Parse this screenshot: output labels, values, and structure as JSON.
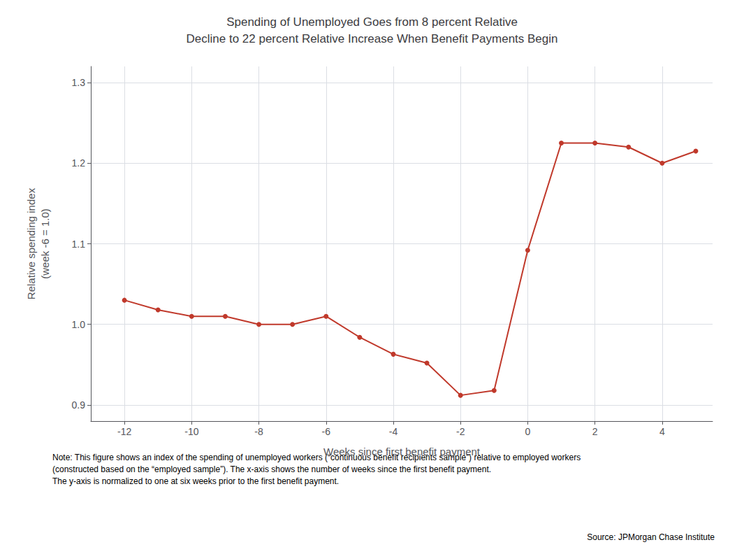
{
  "chart_data": {
    "type": "line",
    "title": "Spending of Unemployed Goes from 8 percent Relative\nDecline to 22 percent Relative Increase When Benefit Payments Begin",
    "x_label": "Weeks since first benefit payment",
    "y_label": "Relative spending index\n(week -6 = 1.0)",
    "x": [
      -12,
      -11,
      -10,
      -9,
      -8,
      -7,
      -6,
      -5,
      -4,
      -3,
      -2,
      -1,
      0,
      1,
      2,
      3,
      4,
      5
    ],
    "values": [
      1.03,
      1.018,
      1.01,
      1.01,
      1.0,
      1.0,
      1.01,
      0.984,
      0.963,
      0.952,
      0.912,
      0.918,
      1.092,
      1.225,
      1.225,
      1.22,
      1.2,
      1.215
    ],
    "color": "#c0392b",
    "marker": "circle",
    "xlim": [
      -13,
      5.5
    ],
    "xticks": [
      -12,
      -10,
      -8,
      -6,
      -4,
      -2,
      0,
      2,
      4
    ],
    "ylim": [
      0.88,
      1.32
    ],
    "yticks": [
      0.9,
      {
        "value": 1.0,
        "label": "1.0"
      },
      1.1,
      1.2,
      1.3
    ],
    "grid": true,
    "annotations": [
      "Note: This figure shows an index of the spending of unemployed workers (“continuous benefit recipients sample”) relative to employed workers\n(constructed based on the “employed sample”). The x-axis shows the number of weeks since the first benefit payment.\nThe y-axis is normalized to one at six weeks prior to the first benefit payment.",
      "Source: JPMorgan Chase Institute"
    ]
  }
}
